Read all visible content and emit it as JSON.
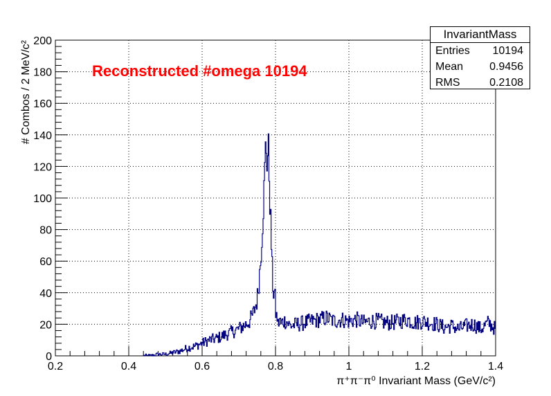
{
  "stats_box": {
    "title": "InvariantMass",
    "rows": [
      {
        "label": "Entries",
        "value": "10194"
      },
      {
        "label": "Mean",
        "value": "0.9456"
      },
      {
        "label": "RMS",
        "value": "0.2108"
      }
    ]
  },
  "colors": {
    "series": "#000080",
    "annotation": "#ff0000",
    "axis": "#000000",
    "grid": "#000000"
  },
  "chart_data": {
    "type": "line",
    "title": "",
    "annotation": "Reconstructed #omega 10194",
    "xlabel": "π⁺π⁻π⁰ Invariant Mass (GeV/c²)",
    "ylabel": "# Combos / 2 MeV/c²",
    "xlim": [
      0.2,
      1.4
    ],
    "ylim": [
      0,
      200
    ],
    "x_ticks": [
      "0.2",
      "0.4",
      "0.6",
      "0.8",
      "1",
      "1.2",
      "1.4"
    ],
    "y_ticks": [
      "0",
      "20",
      "40",
      "60",
      "80",
      "100",
      "120",
      "140",
      "160",
      "180",
      "200"
    ],
    "grid": true,
    "bin_width": 0.002,
    "series": [
      {
        "style": "step",
        "x": [
          0.44,
          0.46,
          0.48,
          0.5,
          0.52,
          0.54,
          0.56,
          0.58,
          0.6,
          0.62,
          0.64,
          0.66,
          0.68,
          0.7,
          0.72,
          0.73,
          0.74,
          0.75,
          0.755,
          0.76,
          0.765,
          0.77,
          0.772,
          0.774,
          0.776,
          0.778,
          0.78,
          0.782,
          0.784,
          0.786,
          0.788,
          0.79,
          0.792,
          0.794,
          0.796,
          0.798,
          0.8,
          0.802,
          0.804,
          0.806,
          0.808,
          0.81,
          0.815,
          0.82,
          0.83,
          0.84,
          0.86,
          0.88,
          0.9,
          0.92,
          0.94,
          0.96,
          0.98,
          1.0,
          1.02,
          1.04,
          1.06,
          1.08,
          1.1,
          1.12,
          1.14,
          1.16,
          1.18,
          1.2,
          1.22,
          1.24,
          1.26,
          1.28,
          1.3,
          1.32,
          1.34,
          1.36,
          1.38,
          1.4
        ],
        "y": [
          0,
          0,
          1,
          1,
          2,
          3,
          5,
          6,
          8,
          10,
          11,
          13,
          15,
          17,
          20,
          22,
          27,
          35,
          47,
          62,
          85,
          110,
          125,
          136,
          128,
          120,
          135,
          125,
          105,
          92,
          78,
          62,
          48,
          42,
          38,
          42,
          30,
          24,
          26,
          22,
          18,
          24,
          20,
          22,
          22,
          19,
          20,
          21,
          22,
          23,
          24,
          22,
          23,
          22,
          23,
          21,
          22,
          22,
          21,
          21,
          22,
          23,
          21,
          22,
          21,
          20,
          18,
          19,
          17,
          19,
          20,
          17,
          21,
          17
        ]
      }
    ]
  }
}
